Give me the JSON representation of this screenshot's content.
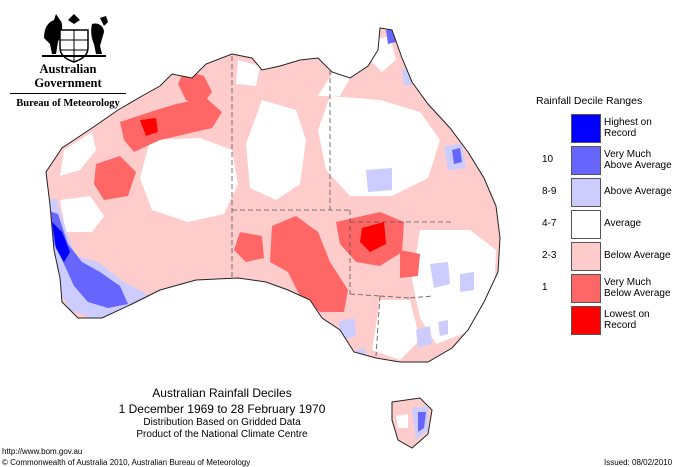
{
  "header": {
    "government": "Australian Government",
    "bureau": "Bureau of Meteorology"
  },
  "legend": {
    "title": "Rainfall Decile Ranges",
    "items": [
      {
        "range": "",
        "label_lines": [
          "Highest on",
          "Record"
        ],
        "color": "#0000ff"
      },
      {
        "range": "10",
        "label_lines": [
          "Very Much",
          "Above Average"
        ],
        "color": "#6666ff"
      },
      {
        "range": "8-9",
        "label_lines": [
          "Above Average"
        ],
        "color": "#ccccff"
      },
      {
        "range": "4-7",
        "label_lines": [
          "Average"
        ],
        "color": "#ffffff"
      },
      {
        "range": "2-3",
        "label_lines": [
          "Below Average"
        ],
        "color": "#ffcccc"
      },
      {
        "range": "1",
        "label_lines": [
          "Very Much",
          "Below Average"
        ],
        "color": "#ff6666"
      },
      {
        "range": "",
        "label_lines": [
          "Lowest on",
          "Record"
        ],
        "color": "#ff0000"
      }
    ]
  },
  "caption": {
    "title": "Australian Rainfall Deciles",
    "period": "1 December 1969 to 28 February 1970",
    "line3": "Distribution Based on Gridded Data",
    "line4": "Product of the National Climate Centre"
  },
  "footer": {
    "url": "http://www.bom.gov.au",
    "copyright": "© Commonwealth of Australia 2010, Australian Bureau of Meteorology",
    "issued": "Issued: 08/02/2010"
  }
}
